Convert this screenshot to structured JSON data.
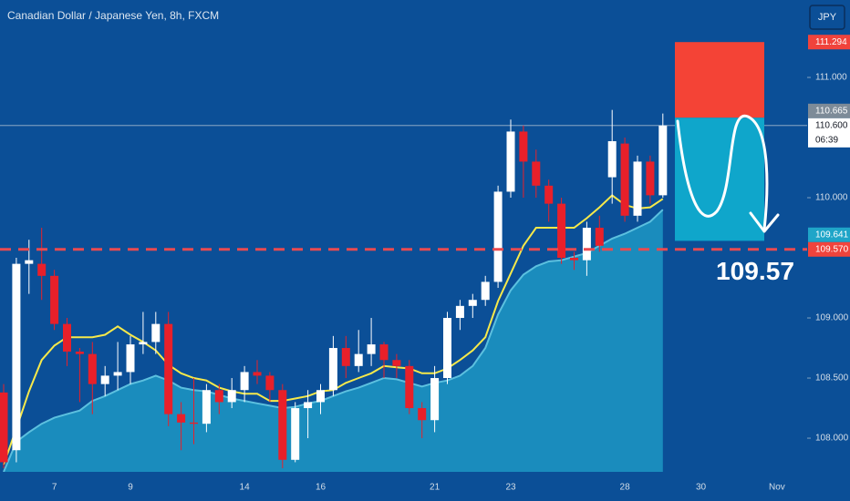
{
  "chart_data": {
    "type": "candlestick",
    "title": "Canadian Dollar / Japanese Yen, 8h, FXCM",
    "currency_button": "JPY",
    "categories": [
      null,
      null,
      null,
      null,
      "7",
      null,
      null,
      null,
      null,
      null,
      "9",
      null,
      null,
      null,
      null,
      null,
      null,
      null,
      null,
      "14",
      null,
      null,
      null,
      null,
      null,
      "16",
      null,
      null,
      null,
      null,
      null,
      null,
      null,
      null,
      "21",
      null,
      null,
      null,
      null,
      null,
      "23",
      null,
      null,
      null,
      null,
      null,
      null,
      null,
      null,
      "28",
      null,
      null,
      null,
      null,
      null,
      "30",
      null,
      null,
      null,
      null,
      null,
      "Nov"
    ],
    "open": [
      108.38,
      107.9,
      109.45,
      109.45,
      109.35,
      108.95,
      108.72,
      108.7,
      108.45,
      108.52,
      108.55,
      108.78,
      108.8,
      108.95,
      108.2,
      108.13,
      108.12,
      108.4,
      108.3,
      108.4,
      108.55,
      108.52,
      108.4,
      107.82,
      108.25,
      108.3,
      108.4,
      108.75,
      108.6,
      108.7,
      108.78,
      108.65,
      108.6,
      108.25,
      108.15,
      108.5,
      109.0,
      109.1,
      109.15,
      109.3,
      110.05,
      110.55,
      110.3,
      110.1,
      109.95,
      109.5,
      109.48,
      109.75,
      110.17,
      110.45,
      109.85,
      110.3,
      110.02,
      null,
      null,
      null,
      null,
      null,
      null,
      null,
      null,
      null
    ],
    "high": [
      108.45,
      109.5,
      109.65,
      109.75,
      109.4,
      109.0,
      108.75,
      108.8,
      108.6,
      108.8,
      108.85,
      109.05,
      109.05,
      109.05,
      108.3,
      108.5,
      108.45,
      108.45,
      108.5,
      108.6,
      108.65,
      108.55,
      108.45,
      108.3,
      108.4,
      108.45,
      108.85,
      108.85,
      108.9,
      109.0,
      108.8,
      108.7,
      108.65,
      108.3,
      108.6,
      109.05,
      109.15,
      109.2,
      109.35,
      110.1,
      110.65,
      110.6,
      110.4,
      110.15,
      110.0,
      109.55,
      109.8,
      109.85,
      110.73,
      110.5,
      110.35,
      110.35,
      110.7,
      null,
      null,
      null,
      null,
      null,
      null,
      null,
      null,
      null
    ],
    "low": [
      107.75,
      107.8,
      109.2,
      109.15,
      108.9,
      108.6,
      108.3,
      108.2,
      108.35,
      108.4,
      108.45,
      108.7,
      108.7,
      108.1,
      107.9,
      107.95,
      108.05,
      108.2,
      108.25,
      108.3,
      108.45,
      108.3,
      107.75,
      107.8,
      108.0,
      108.2,
      108.35,
      108.5,
      108.55,
      108.6,
      108.5,
      108.5,
      108.2,
      108.0,
      108.05,
      108.45,
      108.9,
      109.0,
      109.1,
      109.25,
      110.0,
      110.0,
      110.0,
      109.8,
      109.45,
      109.4,
      109.35,
      109.55,
      109.95,
      109.8,
      109.8,
      109.95,
      110.0,
      null,
      null,
      null,
      null,
      null,
      null,
      null,
      null,
      null
    ],
    "close": [
      107.8,
      109.45,
      109.48,
      109.35,
      108.95,
      108.72,
      108.7,
      108.45,
      108.52,
      108.55,
      108.78,
      108.8,
      108.95,
      108.2,
      108.13,
      108.12,
      108.4,
      108.3,
      108.4,
      108.55,
      108.52,
      108.4,
      107.82,
      108.25,
      108.3,
      108.4,
      108.75,
      108.6,
      108.7,
      108.78,
      108.65,
      108.6,
      108.25,
      108.15,
      108.5,
      109.0,
      109.1,
      109.15,
      109.3,
      110.05,
      110.55,
      110.3,
      110.1,
      109.95,
      109.5,
      109.48,
      109.75,
      109.6,
      110.47,
      109.85,
      110.3,
      110.02,
      110.6,
      null,
      null,
      null,
      null,
      null,
      null,
      null,
      null,
      null
    ],
    "up_color": "#ffffff",
    "down_color": "#e8202a",
    "series": [
      {
        "type": "line",
        "color": "#f7e94a",
        "values": [
          107.78,
          108.08,
          108.39,
          108.65,
          108.77,
          108.84,
          108.84,
          108.84,
          108.86,
          108.93,
          108.86,
          108.8,
          108.73,
          108.61,
          108.54,
          108.5,
          108.48,
          108.42,
          108.39,
          108.37,
          108.37,
          108.31,
          108.31,
          108.33,
          108.35,
          108.39,
          108.4,
          108.46,
          108.5,
          108.54,
          108.6,
          108.59,
          108.58,
          108.54,
          108.54,
          108.58,
          108.65,
          108.73,
          108.84,
          109.14,
          109.37,
          109.6,
          109.75,
          109.75,
          109.75,
          109.75,
          109.83,
          109.92,
          110.02,
          109.94,
          109.91,
          109.92,
          109.99,
          null,
          null,
          null,
          null,
          null,
          null,
          null,
          null,
          null
        ]
      },
      {
        "type": "area",
        "color": "#1a8cbd",
        "line_color": "#5cc0df",
        "values": [
          107.72,
          107.97,
          108.05,
          108.12,
          108.17,
          108.2,
          108.23,
          108.31,
          108.35,
          108.4,
          108.45,
          108.48,
          108.52,
          108.48,
          108.42,
          108.4,
          108.39,
          108.36,
          108.33,
          108.31,
          108.29,
          108.27,
          108.25,
          108.26,
          108.29,
          108.31,
          108.35,
          108.39,
          108.42,
          108.46,
          108.5,
          108.49,
          108.46,
          108.43,
          108.46,
          108.48,
          108.52,
          108.6,
          108.75,
          109.03,
          109.23,
          109.36,
          109.43,
          109.47,
          109.48,
          109.51,
          109.54,
          109.6,
          109.66,
          109.7,
          109.75,
          109.8,
          109.9,
          null,
          null,
          null,
          null,
          null,
          null,
          null,
          null,
          null
        ]
      }
    ],
    "ylim": [
      107.72,
      111.644
    ],
    "yticks": [
      {
        "value": 108,
        "label": "108.000"
      },
      {
        "value": 108.5,
        "label": "108.500"
      },
      {
        "value": 109,
        "label": "109.000"
      },
      {
        "value": 110,
        "label": "110.000"
      },
      {
        "value": 111,
        "label": "111.000"
      }
    ],
    "price_labels": [
      {
        "value": 111.294,
        "label": "111.294",
        "color": "#f0433c"
      },
      {
        "value": 110.665,
        "label": "110.665",
        "color": "#7d8b98"
      },
      {
        "value": 110.6,
        "label": "110.600",
        "color": "#ffffff",
        "countdown": "06:39"
      },
      {
        "value": 109.641,
        "label": "109.641",
        "color": "#1fa5c8"
      },
      {
        "value": 109.57,
        "label": "109.570",
        "color": "#f0433c"
      }
    ],
    "position": {
      "stop_color": "#f44336",
      "target_color": "#0fa6cb"
    },
    "annotation": {
      "value": 109.57,
      "label": "109.57"
    }
  }
}
